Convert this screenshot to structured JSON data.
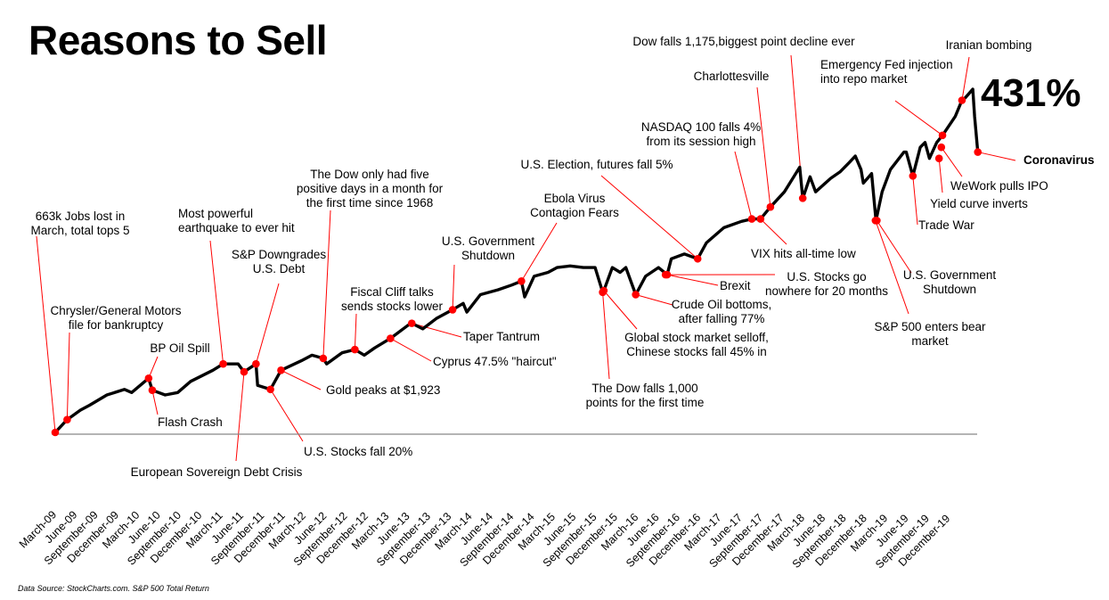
{
  "title": "Reasons to Sell",
  "footer": "Data Source: StockCharts.com. S&P 500 Total Return",
  "chart_data": {
    "type": "line",
    "title": "Reasons to Sell",
    "xlabel": "",
    "ylabel": "",
    "grid": false,
    "legend": "none",
    "line_color": "#000000",
    "marker_color": "#ff0000",
    "leader_color": "#ff0000",
    "baseline_color": "#888888",
    "ylim": [
      0,
      431
    ],
    "xlim": [
      "2009-03-09",
      "2020-03-12"
    ],
    "highlight_value_label": "431%",
    "x_tick_labels": [
      "March-09",
      "June-09",
      "September-09",
      "December-09",
      "March-10",
      "June-10",
      "September-10",
      "December-10",
      "March-11",
      "June-11",
      "September-11",
      "December-11",
      "March-12",
      "June-12",
      "September-12",
      "December-12",
      "March-13",
      "June-13",
      "September-13",
      "December-13",
      "March-14",
      "June-14",
      "September-14",
      "December-14",
      "March-15",
      "June-15",
      "September-15",
      "December-15",
      "March-16",
      "June-16",
      "September-16",
      "December-16",
      "March-17",
      "June-17",
      "September-17",
      "December-17",
      "March-18",
      "June-18",
      "September-18",
      "December-18",
      "March-19",
      "June-19",
      "September-19",
      "December-19"
    ],
    "series": [
      {
        "x": [
          "2009-03-09",
          "2009-04-30",
          "2009-06-27",
          "2009-08-05",
          "2009-10-20",
          "2010-01-05",
          "2010-02-05",
          "2010-04-20",
          "2010-05-06",
          "2010-07-01",
          "2010-08-25",
          "2010-10-20",
          "2011-01-25",
          "2011-03-11",
          "2011-05-15",
          "2011-06-10",
          "2011-08-01",
          "2011-08-08",
          "2011-10-03",
          "2011-11-18",
          "2012-02-15",
          "2012-04-01",
          "2012-05-20",
          "2012-06-04",
          "2012-08-10",
          "2012-10-05",
          "2012-11-15",
          "2012-12-30",
          "2013-03-09",
          "2013-05-22",
          "2013-06-10",
          "2013-07-28",
          "2013-09-25",
          "2013-12-05",
          "2014-01-20",
          "2014-02-05",
          "2014-04-05",
          "2014-06-20",
          "2014-08-20",
          "2014-10-01",
          "2014-10-15",
          "2014-11-25",
          "2015-01-25",
          "2015-03-05",
          "2015-05-01",
          "2015-06-28",
          "2015-08-18",
          "2015-09-20",
          "2015-09-30",
          "2015-11-01",
          "2015-12-05",
          "2015-12-30",
          "2016-02-11",
          "2016-03-25",
          "2016-05-20",
          "2016-06-27",
          "2016-07-15",
          "2016-09-10",
          "2016-11-07",
          "2016-12-15",
          "2017-03-01",
          "2017-05-17",
          "2017-07-01",
          "2017-08-08",
          "2017-09-20",
          "2017-11-20",
          "2018-01-26",
          "2018-02-08",
          "2018-03-12",
          "2018-04-05",
          "2018-06-10",
          "2018-07-20",
          "2018-08-30",
          "2018-09-25",
          "2018-10-20",
          "2018-10-30",
          "2018-12-05",
          "2018-12-24",
          "2019-01-20",
          "2019-02-25",
          "2019-04-25",
          "2019-05-05",
          "2019-06-03",
          "2019-07-05",
          "2019-07-26",
          "2019-08-14",
          "2019-09-15",
          "2019-10-10",
          "2019-12-05",
          "2020-01-03",
          "2020-01-17",
          "2020-02-19",
          "2020-02-27",
          "2020-03-12"
        ],
        "y": [
          0,
          16,
          28,
          34,
          47,
          54,
          50,
          68,
          53,
          47,
          50,
          64,
          78,
          86,
          86,
          76,
          86,
          59,
          54,
          78,
          90,
          97,
          93,
          86,
          100,
          104,
          97,
          106,
          118,
          134,
          137,
          130,
          143,
          154,
          162,
          151,
          173,
          179,
          185,
          190,
          170,
          196,
          201,
          207,
          209,
          207,
          207,
          176,
          182,
          207,
          201,
          207,
          173,
          196,
          207,
          198,
          218,
          224,
          218,
          238,
          257,
          265,
          268,
          268,
          283,
          302,
          333,
          294,
          321,
          302,
          319,
          327,
          339,
          347,
          330,
          313,
          325,
          266,
          302,
          330,
          352,
          352,
          322,
          358,
          364,
          344,
          364,
          373,
          397,
          417,
          420,
          431,
          397,
          352
        ]
      }
    ],
    "annotations": [
      {
        "lines": [
          "663k Jobs lost in",
          "March, total tops 5"
        ],
        "date": "2009-03-09",
        "value": 0
      },
      {
        "lines": [
          "Chrysler/General Motors",
          "file for bankruptcy"
        ],
        "date": "2009-04-30",
        "value": 16
      },
      {
        "lines": [
          "BP Oil Spill"
        ],
        "date": "2010-04-20",
        "value": 68
      },
      {
        "lines": [
          "Flash Crash"
        ],
        "date": "2010-05-06",
        "value": 53
      },
      {
        "lines": [
          "Most powerful",
          "earthquake to ever hit"
        ],
        "date": "2011-03-11",
        "value": 86
      },
      {
        "lines": [
          "European Sovereign Debt Crisis"
        ],
        "date": "2011-06-10",
        "value": 76
      },
      {
        "lines": [
          "S&P Downgrades",
          "U.S. Debt"
        ],
        "date": "2011-08-01",
        "value": 86
      },
      {
        "lines": [
          "U.S. Stocks fall 20%"
        ],
        "date": "2011-10-03",
        "value": 54
      },
      {
        "lines": [
          "Gold peaks at $1,923"
        ],
        "date": "2011-11-18",
        "value": 78
      },
      {
        "lines": [
          "The Dow only had five",
          "positive days in a month for",
          "the first time since 1968"
        ],
        "date": "2012-05-20",
        "value": 93
      },
      {
        "lines": [
          "Fiscal Cliff talks",
          "sends stocks lower"
        ],
        "date": "2012-10-05",
        "value": 104
      },
      {
        "lines": [
          "Cyprus 47.5% \"haircut\""
        ],
        "date": "2013-03-09",
        "value": 118
      },
      {
        "lines": [
          "Taper Tantrum"
        ],
        "date": "2013-06-10",
        "value": 137
      },
      {
        "lines": [
          "U.S. Government",
          "Shutdown"
        ],
        "date": "2013-12-05",
        "value": 154
      },
      {
        "lines": [
          "Ebola Virus",
          "Contagion Fears"
        ],
        "date": "2014-10-01",
        "value": 190
      },
      {
        "lines": [
          "U.S. Election, futures fall 5%"
        ],
        "date": "2016-11-07",
        "value": 218
      },
      {
        "lines": [
          "The Dow falls 1,000",
          "points for the first time"
        ],
        "date": "2015-09-20",
        "value": 176
      },
      {
        "lines": [
          "Global stock market selloff,",
          "Chinese stocks fall 45% in"
        ],
        "date": "2015-09-25",
        "value": 178
      },
      {
        "lines": [
          "Crude Oil bottoms,",
          "after falling 77%"
        ],
        "date": "2016-02-11",
        "value": 173
      },
      {
        "lines": [
          "Brexit"
        ],
        "date": "2016-06-27",
        "value": 198
      },
      {
        "lines": [
          "U.S. Stocks go",
          "nowhere for 20 months"
        ],
        "date": "2016-06-20",
        "value": 198
      },
      {
        "lines": [
          "NASDAQ 100 falls 4%",
          "from its  session high"
        ],
        "date": "2017-07-01",
        "value": 268
      },
      {
        "lines": [
          "VIX hits all-time low"
        ],
        "date": "2017-08-08",
        "value": 268
      },
      {
        "lines": [
          "Charlottesville"
        ],
        "date": "2017-09-20",
        "value": 283
      },
      {
        "lines": [
          "Dow falls 1,175,biggest point decline ever"
        ],
        "date": "2018-02-08",
        "value": 294
      },
      {
        "lines": [
          "S&P 500 enters bear",
          "market"
        ],
        "date": "2018-12-22",
        "value": 266
      },
      {
        "lines": [
          "U.S. Government",
          "Shutdown"
        ],
        "date": "2018-12-28",
        "value": 266
      },
      {
        "lines": [
          "Trade War"
        ],
        "date": "2019-06-03",
        "value": 322
      },
      {
        "lines": [
          "Yield curve inverts"
        ],
        "date": "2019-09-25",
        "value": 344
      },
      {
        "lines": [
          "WeWork pulls IPO"
        ],
        "date": "2019-10-05",
        "value": 358
      },
      {
        "lines": [
          "Emergency Fed injection",
          "into repo market"
        ],
        "date": "2019-10-10",
        "value": 373
      },
      {
        "lines": [
          "Iranian bombing"
        ],
        "date": "2020-01-03",
        "value": 417
      },
      {
        "lines": [
          "Coronavirus"
        ],
        "date": "2020-03-12",
        "value": 352,
        "bold": true
      }
    ]
  }
}
